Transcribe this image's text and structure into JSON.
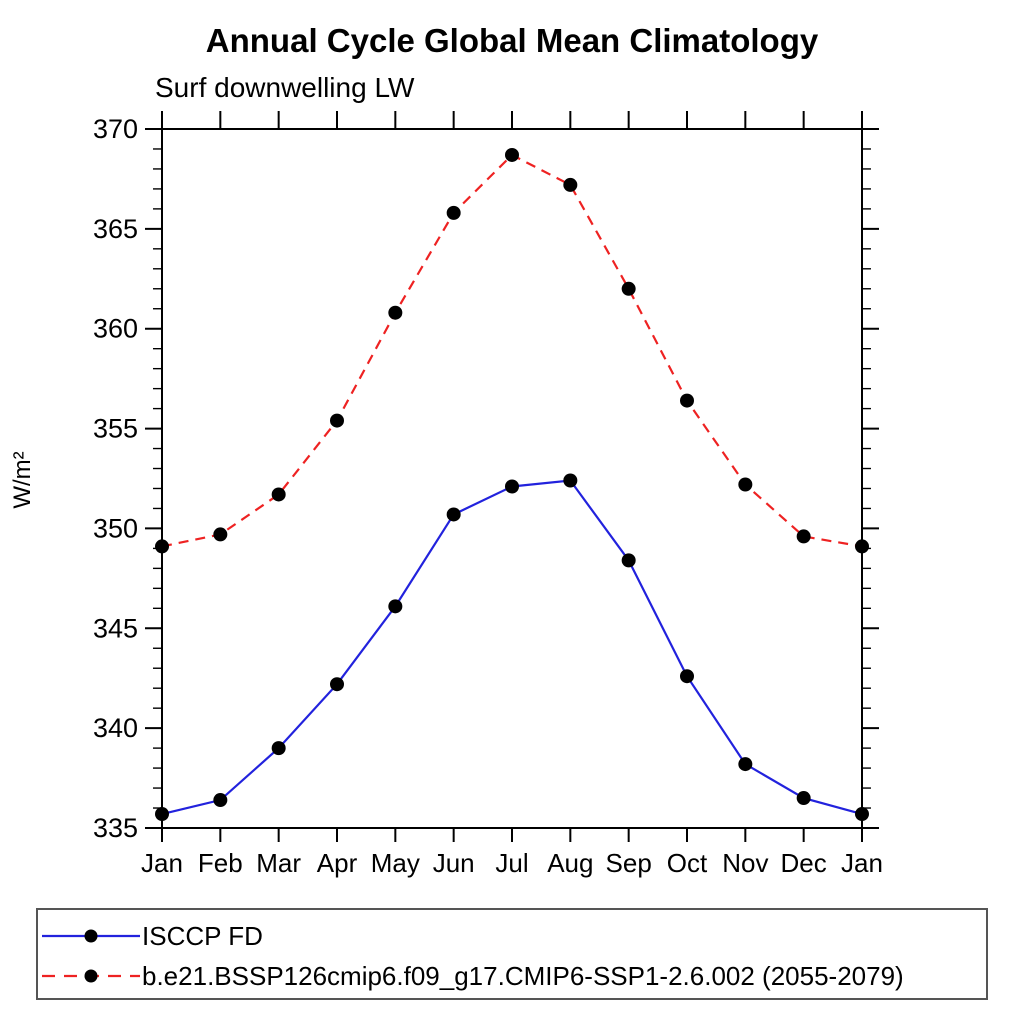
{
  "header": {
    "title": "Annual Cycle Global Mean Climatology",
    "subtitle": "Surf downwelling LW"
  },
  "chart_data": {
    "type": "line",
    "title": "Annual Cycle Global Mean Climatology",
    "subtitle": "Surf downwelling LW",
    "xlabel": "",
    "ylabel": "W/m²",
    "categories": [
      "Jan",
      "Feb",
      "Mar",
      "Apr",
      "May",
      "Jun",
      "Jul",
      "Aug",
      "Sep",
      "Oct",
      "Nov",
      "Dec",
      "Jan"
    ],
    "ylim": [
      335,
      370
    ],
    "ytick_major_step": 5,
    "ytick_minor_step": 1,
    "grid": false,
    "legend_position": "bottom",
    "series": [
      {
        "name": "ISCCP FD",
        "color": "#2222dd",
        "line_style": "solid",
        "marker": "circle",
        "marker_color": "#000000",
        "values": [
          335.7,
          336.4,
          339.0,
          342.2,
          346.1,
          350.7,
          352.1,
          352.4,
          348.4,
          342.6,
          338.2,
          336.5,
          335.7
        ]
      },
      {
        "name": "b.e21.BSSP126cmip6.f09_g17.CMIP6-SSP1-2.6.002 (2055-2079)",
        "color": "#ee2222",
        "line_style": "dashed",
        "marker": "circle",
        "marker_color": "#000000",
        "values": [
          349.1,
          349.7,
          351.7,
          355.4,
          360.8,
          365.8,
          368.7,
          367.2,
          362.0,
          356.4,
          352.2,
          349.6,
          349.1
        ]
      }
    ]
  }
}
